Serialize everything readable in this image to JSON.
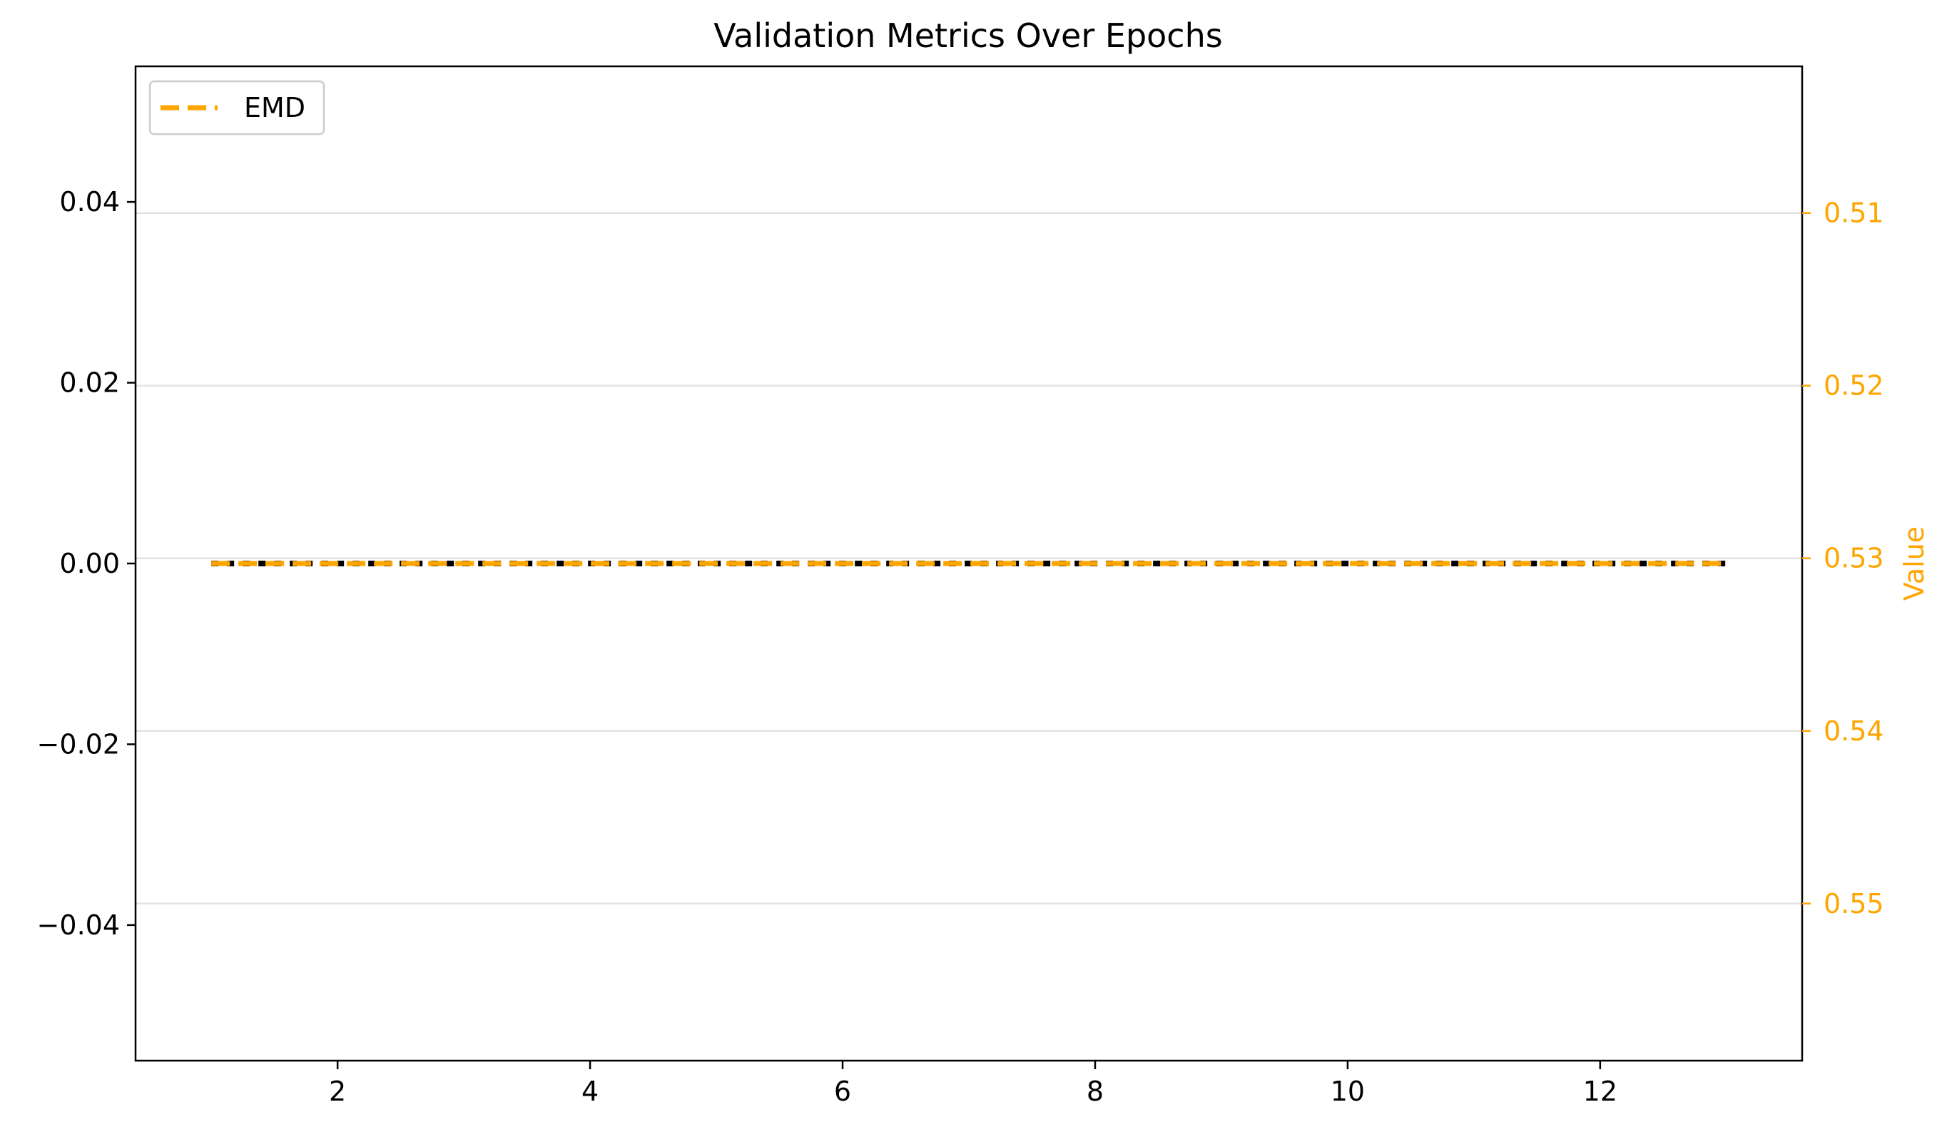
{
  "chart_data": {
    "type": "line",
    "title": "Validation Metrics Over Epochs",
    "xlabel": "",
    "x": [
      1,
      2,
      3,
      4,
      5,
      6,
      7,
      8,
      9,
      10,
      11,
      12,
      13
    ],
    "xlim": [
      0.4,
      13.6
    ],
    "xticks": [
      2,
      4,
      6,
      8,
      10,
      12
    ],
    "xtick_labels": [
      "2",
      "4",
      "6",
      "8",
      "10",
      "12"
    ],
    "left_axis": {
      "ylim": [
        -0.055,
        0.055
      ],
      "ticks": [
        0.04,
        0.02,
        0.0,
        -0.02,
        -0.04
      ],
      "tick_labels": [
        "0.04",
        "0.02",
        "0.00",
        "−0.02",
        "−0.04"
      ]
    },
    "right_axis": {
      "ylabel": "Value",
      "color": "#FFA500",
      "inverted": true,
      "ylim": [
        0.5015,
        0.5591
      ],
      "ticks": [
        0.51,
        0.52,
        0.53,
        0.54,
        0.55
      ],
      "tick_labels": [
        "0.51",
        "0.52",
        "0.53",
        "0.54",
        "0.55"
      ],
      "grid": true
    },
    "series": [
      {
        "axis": "left",
        "color": "#000000",
        "style": "dotted",
        "values": [
          0,
          0,
          0,
          0,
          0,
          0,
          0,
          0,
          0,
          0,
          0,
          0,
          0
        ]
      },
      {
        "name": "EMD",
        "axis": "left",
        "color": "#FFA500",
        "style": "dashed",
        "values": [
          0,
          0,
          0,
          0,
          0,
          0,
          0,
          0,
          0,
          0,
          0,
          0,
          0
        ]
      }
    ],
    "legend": {
      "placement": "upper-left",
      "entries": [
        "EMD"
      ]
    }
  }
}
